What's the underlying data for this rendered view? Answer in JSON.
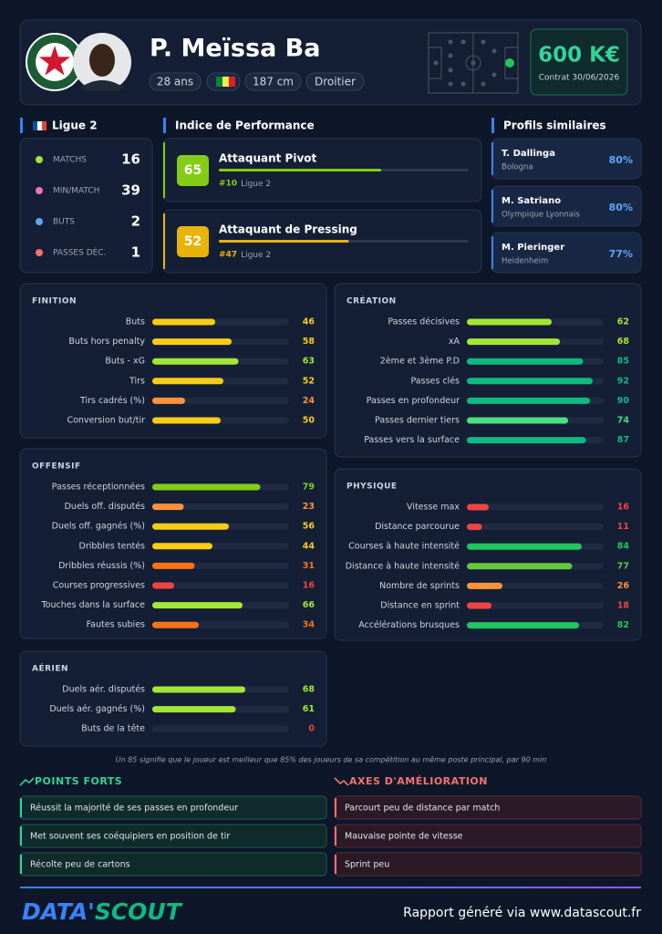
{
  "header": {
    "name": "P. Meïssa Ba",
    "badges": [
      "28 ans",
      "187 cm",
      "Droitier"
    ],
    "value": "600 K€",
    "contract": "Contrat 30/06/2026"
  },
  "xlim": [
    0,
    100
  ],
  "league": {
    "title": "Ligue 2",
    "stats": [
      {
        "label": "MATCHS",
        "value": 16
      },
      {
        "label": "MIN/MATCH",
        "value": 39
      },
      {
        "label": "BUTS",
        "value": 2
      },
      {
        "label": "PASSES DÉC.",
        "value": 1
      }
    ]
  },
  "performance": {
    "title": "Indice de Performance",
    "items": [
      {
        "score": 65,
        "role": "Attaquant Pivot",
        "rank": "#10",
        "league": "Ligue 2",
        "color": "#84cc16"
      },
      {
        "score": 52,
        "role": "Attaquant de Pressing",
        "rank": "#47",
        "league": "Ligue 2",
        "color": "#eab308"
      }
    ]
  },
  "similar": {
    "title": "Profils similaires",
    "items": [
      {
        "name": "T. Dallinga",
        "club": "Bologna",
        "match": "80%"
      },
      {
        "name": "M. Satriano",
        "club": "Olympique Lyonnais",
        "match": "80%"
      },
      {
        "name": "M. Pieringer",
        "club": "Heidenheim",
        "match": "77%"
      }
    ]
  },
  "sections": [
    {
      "title": "FINITION",
      "metrics": [
        {
          "label": "Buts",
          "value": 46,
          "color": "#facc15"
        },
        {
          "label": "Buts hors penalty",
          "value": 58,
          "color": "#facc15"
        },
        {
          "label": "Buts - xG",
          "value": 63,
          "color": "#a3e635"
        },
        {
          "label": "Tirs",
          "value": 52,
          "color": "#facc15"
        },
        {
          "label": "Tirs cadrés (%)",
          "value": 24,
          "color": "#fb923c"
        },
        {
          "label": "Conversion but/tir",
          "value": 50,
          "color": "#facc15"
        }
      ]
    },
    {
      "title": "CRÉATION",
      "metrics": [
        {
          "label": "Passes décisives",
          "value": 62,
          "color": "#a3e635"
        },
        {
          "label": "xA",
          "value": 68,
          "color": "#a3e635"
        },
        {
          "label": "2ème et 3ème P.D",
          "value": 85,
          "color": "#10b981"
        },
        {
          "label": "Passes clés",
          "value": 92,
          "color": "#10b981"
        },
        {
          "label": "Passes en profondeur",
          "value": 90,
          "color": "#10b981"
        },
        {
          "label": "Passes dernier tiers",
          "value": 74,
          "color": "#4ade80"
        },
        {
          "label": "Passes vers la surface",
          "value": 87,
          "color": "#10b981"
        }
      ]
    },
    {
      "title": "OFFENSIF",
      "metrics": [
        {
          "label": "Passes réceptionnées",
          "value": 79,
          "color": "#84cc16"
        },
        {
          "label": "Duels off. disputés",
          "value": 23,
          "color": "#fb923c"
        },
        {
          "label": "Duels off. gagnés (%)",
          "value": 56,
          "color": "#facc15"
        },
        {
          "label": "Dribbles tentés",
          "value": 44,
          "color": "#facc15"
        },
        {
          "label": "Dribbles réussis (%)",
          "value": 31,
          "color": "#f97316"
        },
        {
          "label": "Courses progressives",
          "value": 16,
          "color": "#ef4444"
        },
        {
          "label": "Touches dans la surface",
          "value": 66,
          "color": "#a3e635"
        },
        {
          "label": "Fautes subies",
          "value": 34,
          "color": "#f97316"
        }
      ]
    },
    {
      "title": "PHYSIQUE",
      "metrics": [
        {
          "label": "Vitesse max",
          "value": 16,
          "color": "#ef4444"
        },
        {
          "label": "Distance parcourue",
          "value": 11,
          "color": "#ef4444"
        },
        {
          "label": "Courses à haute intensité",
          "value": 84,
          "color": "#22c55e"
        },
        {
          "label": "Distance à haute intensité",
          "value": 77,
          "color": "#65c93a"
        },
        {
          "label": "Nombre de sprints",
          "value": 26,
          "color": "#fb923c"
        },
        {
          "label": "Distance en sprint",
          "value": 18,
          "color": "#ef4444"
        },
        {
          "label": "Accélérations brusques",
          "value": 82,
          "color": "#22c55e"
        }
      ]
    },
    {
      "title": "AÉRIEN",
      "metrics": [
        {
          "label": "Duels aér. disputés",
          "value": 68,
          "color": "#a3e635"
        },
        {
          "label": "Duels aér. gagnés (%)",
          "value": 61,
          "color": "#a3e635"
        },
        {
          "label": "Buts de la tête",
          "value": 0,
          "color": "#ef4444"
        }
      ]
    }
  ],
  "note": "Un 85 signifie que le joueur est meilleur que 85% des joueurs de sa compétition au même poste principal, par 90 min",
  "strengths": {
    "title": "POINTS FORTS",
    "items": [
      "Réussit la majorité de ses passes en profondeur",
      "Met souvent ses coéquipiers en position de tir",
      "Récolte peu de cartons"
    ]
  },
  "improvements": {
    "title": "AXES D'AMÉLIORATION",
    "items": [
      "Parcourt peu de distance par match",
      "Mauvaise pointe de vitesse",
      "Sprint peu"
    ]
  },
  "footer": {
    "brand": [
      "DATA'",
      "SCOUT"
    ],
    "text": "Rapport généré via www.datascout.fr"
  }
}
